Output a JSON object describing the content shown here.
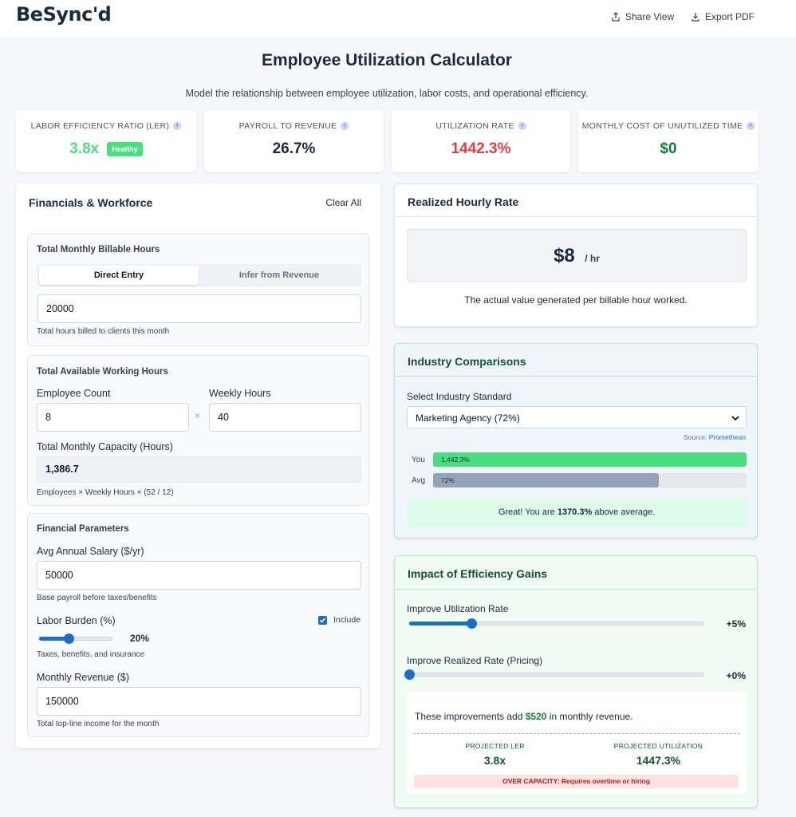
{
  "header": {
    "logo": "BeSync'd",
    "share_label": "Share View",
    "export_label": "Export PDF"
  },
  "page": {
    "title": "Employee Utilization Calculator",
    "subtitle": "Model the relationship between employee utilization, labor costs, and operational efficiency."
  },
  "kpis": [
    {
      "label": "LABOR EFFICIENCY RATIO (LER)",
      "value": "3.8x",
      "badge": "Healthy",
      "color": "#4ade80"
    },
    {
      "label": "PAYROLL TO REVENUE",
      "value": "26.7%",
      "color": "#1e293b"
    },
    {
      "label": "UTILIZATION RATE",
      "value": "1442.3%",
      "color": "#e53e3e"
    },
    {
      "label": "MONTHLY COST OF UNUTILIZED TIME",
      "value": "$0",
      "color": "#15803d"
    }
  ],
  "financials": {
    "title": "Financials & Workforce",
    "clear_label": "Clear All",
    "billable": {
      "heading": "Total Monthly Billable Hours",
      "tab_direct": "Direct Entry",
      "tab_infer": "Infer from Revenue",
      "value": "20000",
      "hint": "Total hours billed to clients this month"
    },
    "available": {
      "heading": "Total Available Working Hours",
      "employee_label": "Employee Count",
      "employee_value": "8",
      "times": "×",
      "weekly_label": "Weekly Hours",
      "weekly_value": "40",
      "capacity_label": "Total Monthly Capacity (Hours)",
      "capacity_value": "1,386.7",
      "hint": "Employees × Weekly Hours × (52 / 12)"
    },
    "parameters": {
      "heading": "Financial Parameters",
      "salary_label": "Avg Annual Salary ($/yr)",
      "salary_value": "50000",
      "salary_hint": "Base payroll before taxes/benefits",
      "burden_label": "Labor Burden (%)",
      "include_label": "Include",
      "burden_value": "20%",
      "burden_level": 0.4,
      "burden_hint": "Taxes, benefits, and insurance",
      "revenue_label": "Monthly Revenue ($)",
      "revenue_value": "150000",
      "revenue_hint": "Total top-line income for the month"
    }
  },
  "realized": {
    "title": "Realized Hourly Rate",
    "value": "$8",
    "unit": "/ hr",
    "description": "The actual value generated per billable hour worked."
  },
  "industry": {
    "title": "Industry Comparisons",
    "select_label": "Select Industry Standard",
    "selected": "Marketing Agency (72%)",
    "source_label": "Source:",
    "source_name": "Promethean",
    "you_label": "You",
    "you_value": "1,442.3%",
    "you_fill": 1.0,
    "avg_label": "Avg",
    "avg_value": "72%",
    "avg_fill": 0.72,
    "you_color": "#4ade80",
    "avg_color": "#94a3b8",
    "message_prefix": "Great! You are",
    "message_value": "1370.3%",
    "message_suffix": "above average."
  },
  "impact": {
    "title": "Impact of Efficiency Gains",
    "util_label": "Improve Utilization Rate",
    "util_value": "+5%",
    "util_level": 0.21,
    "rate_label": "Improve Realized Rate (Pricing)",
    "rate_value": "+0%",
    "rate_level": 0.0,
    "summary_prefix": "These improvements add",
    "summary_value": "$520",
    "summary_suffix": "in monthly revenue.",
    "projected_ler_label": "PROJECTED LER",
    "projected_ler_value": "3.8x",
    "projected_util_label": "PROJECTED UTILIZATION",
    "projected_util_value": "1447.3%",
    "warning": "OVER CAPACITY: Requires overtime or hiring"
  }
}
